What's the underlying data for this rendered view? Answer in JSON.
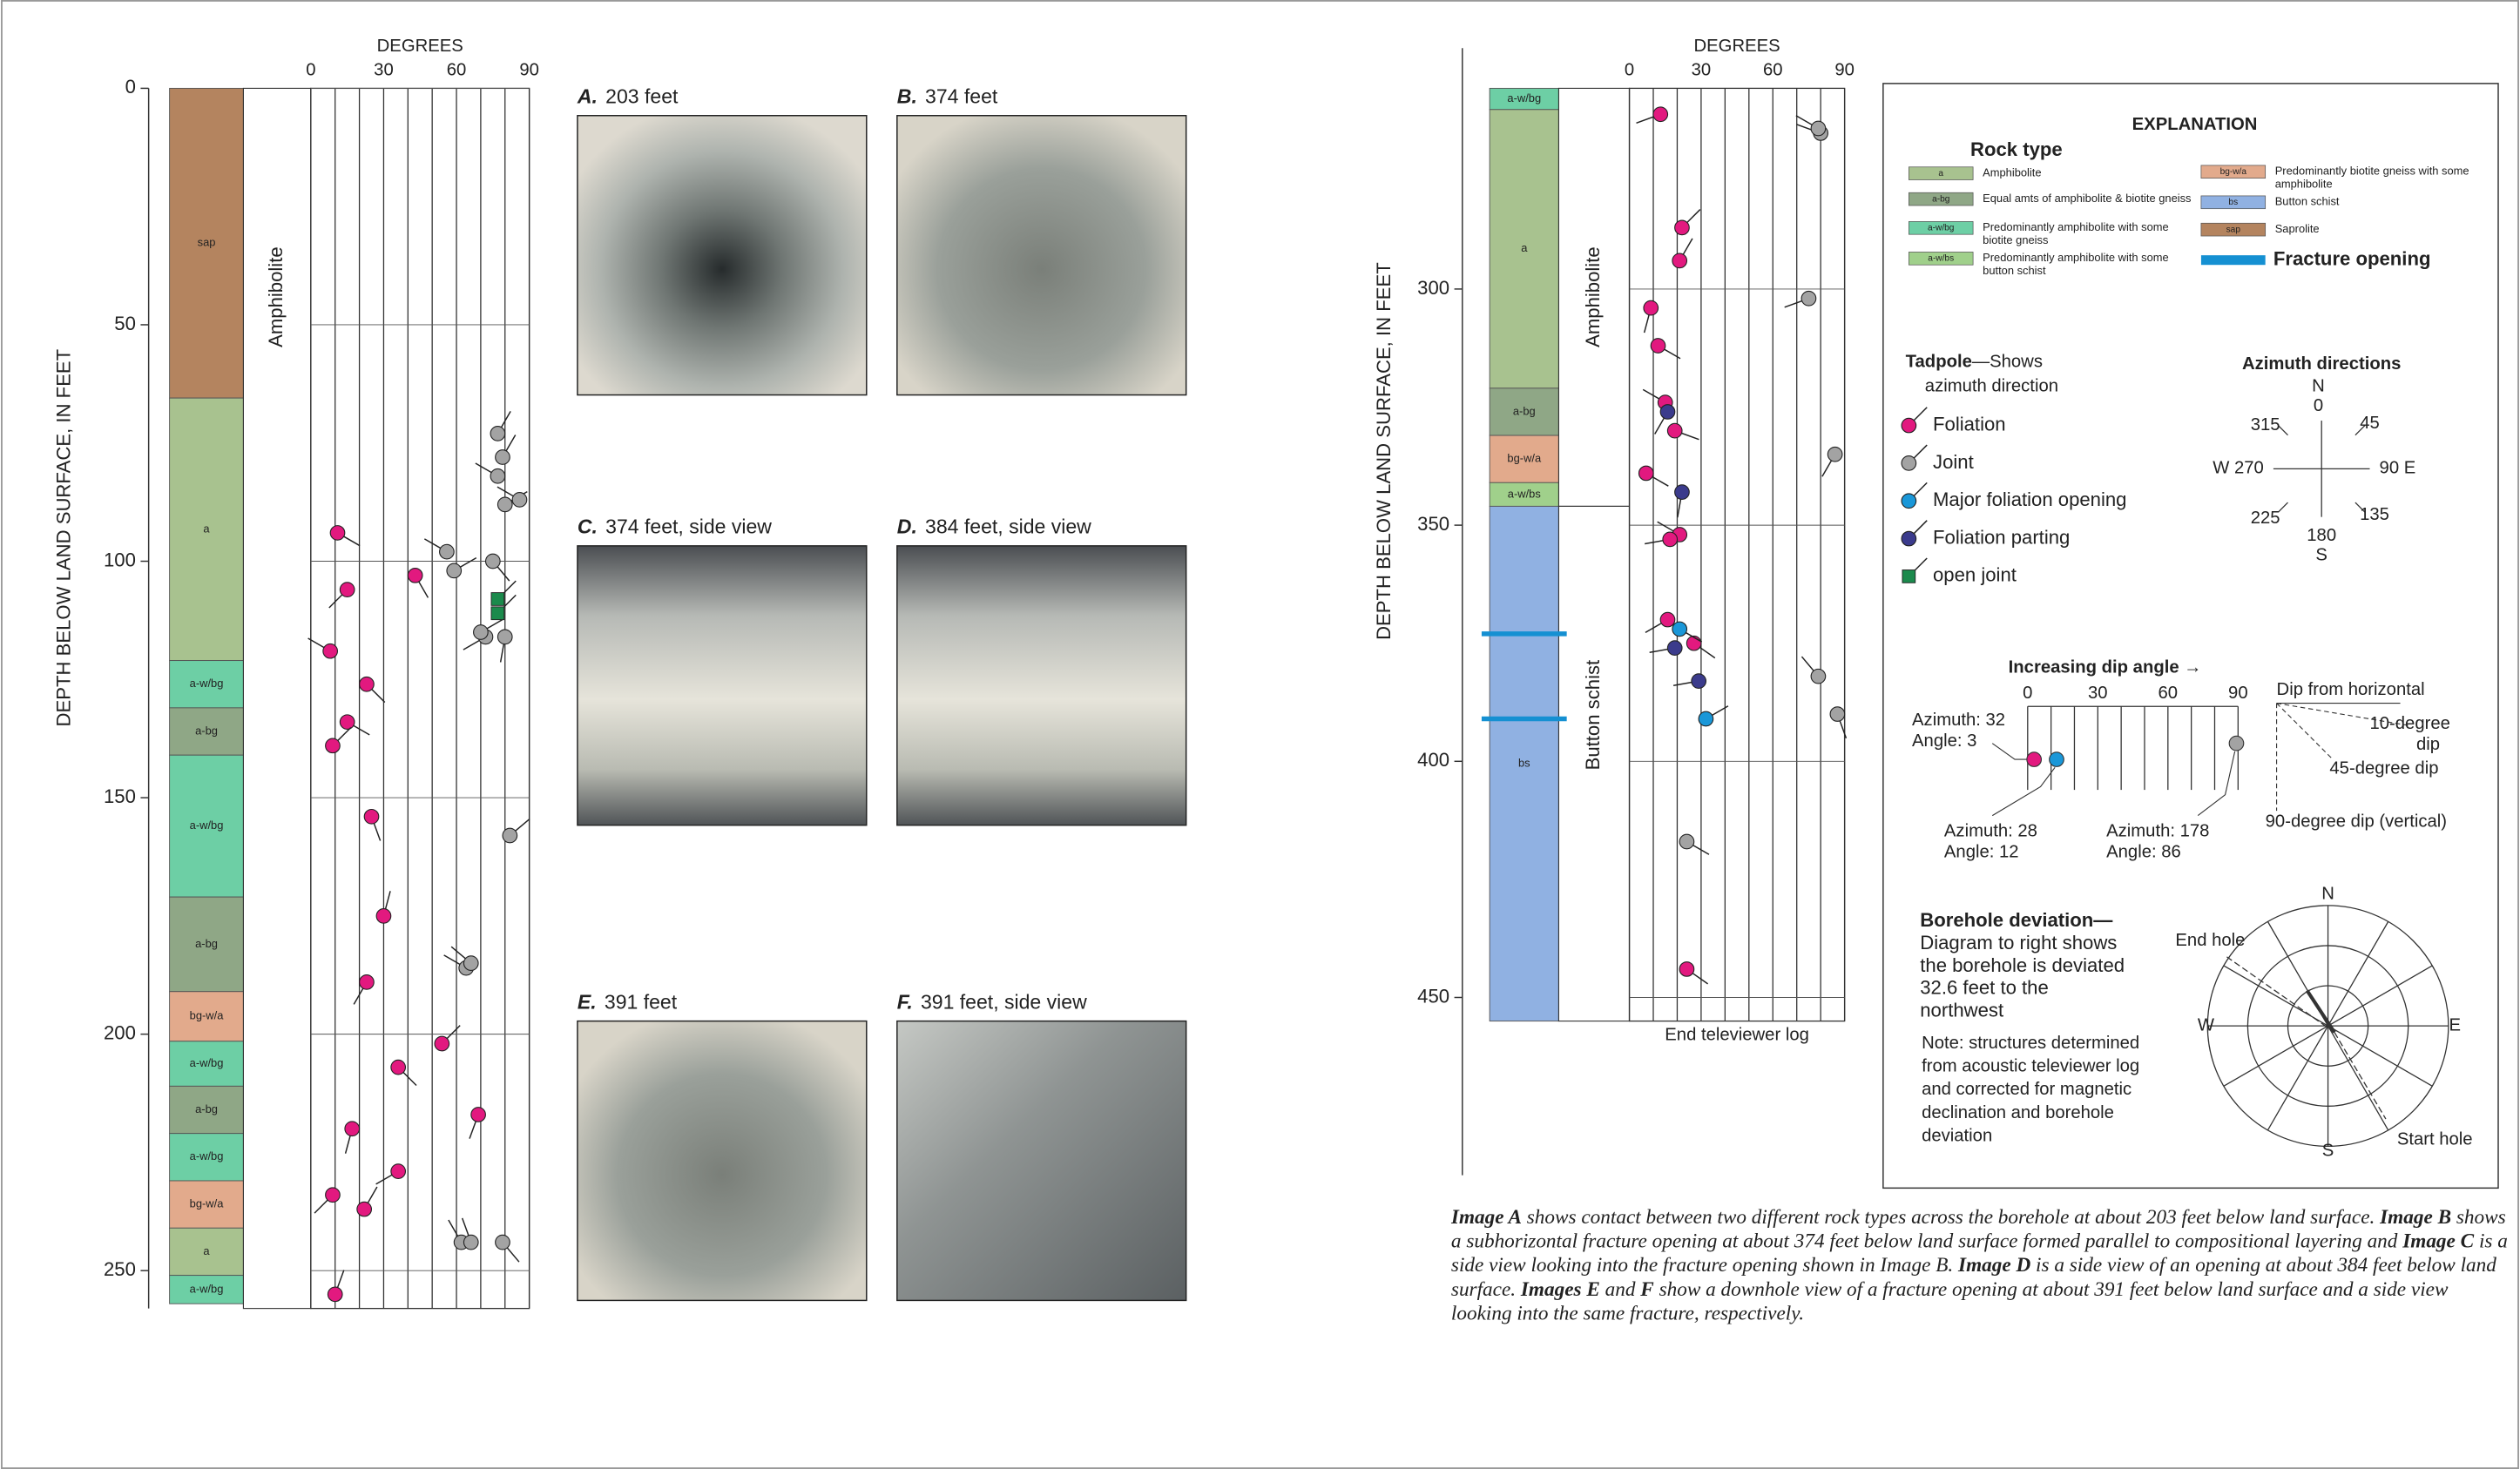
{
  "left_log": {
    "y_label": "DEPTH  BELOW LAND SURFACE, IN FEET",
    "x_label": "DEGREES",
    "ylim": [
      0,
      258
    ],
    "yticks": [
      0,
      50,
      100,
      150,
      200,
      250
    ],
    "xlim": [
      0,
      90
    ],
    "xticks": [
      0,
      30,
      60,
      90
    ],
    "rock_units": [
      {
        "code": "sap",
        "top": 0,
        "bottom": 65.5
      },
      {
        "code": "a",
        "top": 65.5,
        "bottom": 121
      },
      {
        "code": "a-w/bg",
        "top": 121,
        "bottom": 131
      },
      {
        "code": "a-bg",
        "top": 131,
        "bottom": 141
      },
      {
        "code": "a-w/bg",
        "top": 141,
        "bottom": 171
      },
      {
        "code": "a-bg",
        "top": 171,
        "bottom": 191
      },
      {
        "code": "bg-w/a",
        "top": 191,
        "bottom": 201.5
      },
      {
        "code": "a-w/bg",
        "top": 201.5,
        "bottom": 211
      },
      {
        "code": "a-bg",
        "top": 211,
        "bottom": 221
      },
      {
        "code": "a-w/bg",
        "top": 221,
        "bottom": 231
      },
      {
        "code": "bg-w/a",
        "top": 231,
        "bottom": 241
      },
      {
        "code": "a",
        "top": 241,
        "bottom": 251
      },
      {
        "code": "a-w/bg",
        "top": 251,
        "bottom": 257
      }
    ],
    "lithology": [
      {
        "label": "Amphibolite",
        "top": 0,
        "bottom": 258
      }
    ],
    "tadpoles": [
      {
        "kind": "Foliation",
        "depth": [
          94,
          106,
          119,
          126,
          134,
          139,
          154,
          175,
          189,
          103,
          207,
          202,
          220,
          217,
          229,
          234,
          237,
          255
        ],
        "dip": [
          11,
          15,
          8,
          23,
          15,
          9,
          25,
          30,
          23,
          43,
          36,
          54,
          17,
          69,
          36,
          9,
          22,
          10
        ],
        "azimuth": [
          120,
          225,
          300,
          135,
          120,
          45,
          160,
          15,
          210,
          150,
          135,
          45,
          195,
          200,
          240,
          225,
          30,
          20
        ]
      },
      {
        "kind": "Joint",
        "depth": [
          73,
          78,
          82,
          88,
          87,
          98,
          102,
          100,
          158,
          186,
          185,
          116,
          116,
          115,
          244,
          244,
          244
        ],
        "dip": [
          77,
          79,
          77,
          80,
          86,
          56,
          59,
          75,
          82,
          64,
          66,
          72,
          80,
          70,
          62,
          66,
          79
        ],
        "azimuth": [
          30,
          30,
          300,
          60,
          300,
          300,
          60,
          140,
          50,
          300,
          310,
          240,
          190,
          60,
          330,
          340,
          140
        ]
      },
      {
        "kind": "open joint",
        "depth": [
          108,
          111
        ],
        "dip": [
          77,
          77
        ],
        "azimuth": [
          45,
          45
        ]
      }
    ]
  },
  "right_log": {
    "y_label": "DEPTH  BELOW LAND SURFACE, IN FEET",
    "x_label": "DEGREES",
    "ylim": [
      257.5,
      455
    ],
    "yticks": [
      300,
      350,
      400,
      450
    ],
    "xlim": [
      0,
      90
    ],
    "xticks": [
      0,
      30,
      60,
      90
    ],
    "rock_units": [
      {
        "code": "a-w/bg",
        "top": 257.5,
        "bottom": 262
      },
      {
        "code": "a",
        "top": 262,
        "bottom": 321
      },
      {
        "code": "a-bg",
        "top": 321,
        "bottom": 331
      },
      {
        "code": "bg-w/a",
        "top": 331,
        "bottom": 341
      },
      {
        "code": "a-w/bs",
        "top": 341,
        "bottom": 346
      },
      {
        "code": "bs",
        "top": 346,
        "bottom": 455
      }
    ],
    "fracture_openings": [
      373,
      391
    ],
    "lithology": [
      {
        "label": "Amphibolite",
        "top": 257.5,
        "bottom": 346
      },
      {
        "label": "Button schist",
        "top": 346,
        "bottom": 455
      }
    ],
    "end_label": "End televiewer log",
    "tadpoles": [
      {
        "kind": "Foliation",
        "depth": [
          263,
          287,
          294,
          304,
          312,
          324,
          330,
          339,
          352,
          353,
          370,
          375,
          444
        ],
        "dip": [
          13,
          22,
          21,
          9,
          12,
          15,
          19,
          7,
          21,
          17,
          16,
          27,
          24
        ],
        "azimuth": [
          250,
          45,
          30,
          195,
          120,
          300,
          110,
          120,
          300,
          260,
          240,
          125,
          125
        ]
      },
      {
        "kind": "Joint",
        "depth": [
          267,
          266,
          302,
          335,
          382,
          390,
          417
        ],
        "dip": [
          80,
          79,
          75,
          86,
          79,
          87,
          24
        ],
        "azimuth": [
          290,
          300,
          250,
          210,
          320,
          160,
          120
        ]
      },
      {
        "kind": "Major foliation opening",
        "depth": [
          372,
          391
        ],
        "dip": [
          21,
          32
        ],
        "azimuth": [
          120,
          60
        ]
      },
      {
        "kind": "Foliation parting",
        "depth": [
          326,
          343,
          376,
          383
        ],
        "dip": [
          16,
          22,
          19,
          29
        ],
        "azimuth": [
          210,
          190,
          260,
          260
        ]
      }
    ]
  },
  "photos": [
    {
      "letter": "A.",
      "caption": "203 feet"
    },
    {
      "letter": "B.",
      "caption": "374 feet"
    },
    {
      "letter": "C.",
      "caption": "374 feet, side view"
    },
    {
      "letter": "D.",
      "caption": "384 feet, side view"
    },
    {
      "letter": "E.",
      "caption": "391 feet"
    },
    {
      "letter": "F.",
      "caption": "391 feet, side view"
    }
  ],
  "explanation": {
    "title": "EXPLANATION",
    "rock_type_title": "Rock type",
    "rock_types": [
      {
        "code": "a",
        "color": "#a8c28f",
        "lines": [
          "Amphibolite"
        ]
      },
      {
        "code": "a-bg",
        "color": "#8fa786",
        "lines": [
          "Equal amts of amphibolite & biotite gneiss"
        ]
      },
      {
        "code": "a-w/bg",
        "color": "#6dcfa5",
        "lines": [
          "Predominantly amphibolite with some",
          "biotite gneiss"
        ]
      },
      {
        "code": "a-w/bs",
        "color": "#a0d08b",
        "lines": [
          "Predominantly amphibolite with some",
          "button schist"
        ]
      },
      {
        "code": "bg-w/a",
        "color": "#e2aa8c",
        "lines": [
          "Predominantly biotite gneiss with some",
          "amphibolite"
        ]
      },
      {
        "code": "bs",
        "color": "#90b1e2",
        "lines": [
          "Button schist"
        ]
      },
      {
        "code": "sap",
        "color": "#b4845f",
        "lines": [
          "Saprolite"
        ]
      }
    ],
    "fracture_opening": {
      "label": "Fracture opening",
      "color": "#1590d2"
    },
    "tadpole_title": "Tadpole",
    "tadpole_subtitle": [
      "—Shows",
      "azimuth direction"
    ],
    "tadpole_types": [
      {
        "label": "Foliation",
        "color": "#e2197f"
      },
      {
        "label": "Joint",
        "color": "#a3a3a3"
      },
      {
        "label": "Major foliation opening",
        "color": "#1a97d8"
      },
      {
        "label": "Foliation parting",
        "color": "#3b3b8c"
      },
      {
        "label": "open joint",
        "color": "#1b8a4c",
        "shape": "square"
      }
    ],
    "azimuth_title": "Azimuth directions",
    "azimuth_labels": [
      "N",
      "0",
      "45",
      "90  E",
      "135",
      "180",
      "S",
      "225",
      "W  270",
      "315"
    ],
    "dip_title": "Increasing dip angle →",
    "dip_ticks": [
      0,
      30,
      60,
      90
    ],
    "dip_examples": [
      "Azimuth: 32",
      "Angle: 3",
      "Azimuth: 28",
      "Angle: 12",
      "Azimuth: 178",
      "Angle: 86"
    ],
    "dip_side": [
      "Dip from horizontal",
      "10-degree",
      "dip",
      "45-degree dip",
      "90-degree dip (vertical)"
    ],
    "deviation_title": "Borehole deviation—",
    "deviation_lines": [
      "Diagram to right shows",
      "the borehole is deviated",
      "32.6 feet to the",
      "northwest"
    ],
    "note_lines": [
      "Note: structures determined",
      "from acoustic televiewer log",
      "and corrected for magnetic",
      "declination and borehole",
      "deviation"
    ],
    "deviation_labels": [
      "N",
      "E",
      "S",
      "W",
      "End hole",
      "Start hole"
    ]
  },
  "caption": [
    {
      "text": "Image A",
      "bold": true
    },
    {
      "text": " shows contact between two different rock types across the borehole at about 203 feet below land surface. "
    },
    {
      "text": "Image B",
      "bold": true
    },
    {
      "text": " shows a subhorizontal fracture opening at about 374 feet below land surface formed parallel to compositional layering and "
    },
    {
      "text": "Image C",
      "bold": true
    },
    {
      "text": " is a side view looking into the fracture opening shown in Image B. "
    },
    {
      "text": "Image D",
      "bold": true
    },
    {
      "text": " is a side view of an opening at about 384 feet below land surface. "
    },
    {
      "text": "Images E",
      "bold": true
    },
    {
      "text": " and "
    },
    {
      "text": "F",
      "bold": true
    },
    {
      "text": " show a downhole view of a fracture opening at about 391 feet below land surface and a side view looking into the same fracture, respectively."
    }
  ]
}
